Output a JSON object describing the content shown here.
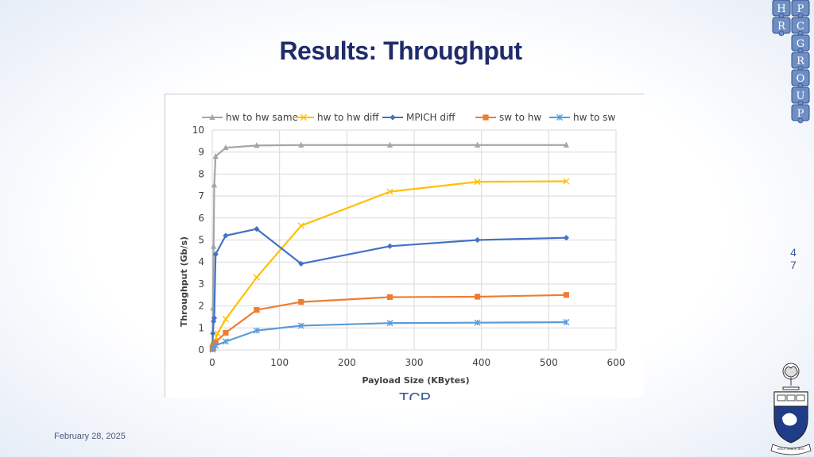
{
  "slide": {
    "title": "Results: Throughput",
    "date": "February 28, 2025",
    "page_number": [
      "4",
      "7"
    ],
    "stray_text": "TCP"
  },
  "logo": {
    "puzzle_letters": [
      "H",
      "P",
      "R",
      "C",
      "G",
      "R",
      "O",
      "U",
      "P"
    ],
    "crest_motto": "VELUT ARBOR ÆVO"
  },
  "colors": {
    "title": "#1f2b6b",
    "hw_to_hw_same": "#a5a5a5",
    "hw_to_hw_diff": "#ffc000",
    "mpich_diff": "#4472c4",
    "sw_to_hw": "#ed7d31",
    "hw_to_sw": "#5b9bd5"
  },
  "chart_data": {
    "type": "line",
    "title": "",
    "xlabel": "Payload Size (KBytes)",
    "ylabel": "Throughput (Gb/s)",
    "xlim": [
      0,
      600
    ],
    "ylim": [
      0,
      10
    ],
    "x_ticks": [
      0,
      100,
      200,
      300,
      400,
      500,
      600
    ],
    "y_ticks": [
      0,
      1,
      2,
      3,
      4,
      5,
      6,
      7,
      8,
      9,
      10
    ],
    "grid": true,
    "legend": "top",
    "series": [
      {
        "name": "hw to hw same",
        "color": "#a5a5a5",
        "marker": "triangle",
        "points": [
          [
            0.5,
            0.3
          ],
          [
            1,
            1.9
          ],
          [
            2,
            4.7
          ],
          [
            3,
            7.5
          ],
          [
            5,
            8.8
          ],
          [
            20,
            9.2
          ],
          [
            66,
            9.3
          ],
          [
            132,
            9.32
          ],
          [
            264,
            9.32
          ],
          [
            394,
            9.32
          ],
          [
            526,
            9.32
          ]
        ]
      },
      {
        "name": "hw to hw diff",
        "color": "#ffc000",
        "marker": "x",
        "points": [
          [
            0.5,
            0.1
          ],
          [
            2,
            0.2
          ],
          [
            4,
            0.4
          ],
          [
            8,
            0.75
          ],
          [
            20,
            1.4
          ],
          [
            66,
            3.3
          ],
          [
            132,
            5.65
          ],
          [
            264,
            7.2
          ],
          [
            394,
            7.65
          ],
          [
            526,
            7.67
          ]
        ]
      },
      {
        "name": "MPICH diff",
        "color": "#4472c4",
        "marker": "diamond",
        "points": [
          [
            0.5,
            0.05
          ],
          [
            1,
            0.75
          ],
          [
            2,
            1.3
          ],
          [
            3,
            1.45
          ],
          [
            5,
            4.35
          ],
          [
            20,
            5.2
          ],
          [
            66,
            5.5
          ],
          [
            132,
            3.92
          ],
          [
            264,
            4.72
          ],
          [
            394,
            5.0
          ],
          [
            526,
            5.1
          ]
        ]
      },
      {
        "name": "sw to hw",
        "color": "#ed7d31",
        "marker": "square",
        "points": [
          [
            0.5,
            0.05
          ],
          [
            1,
            0.1
          ],
          [
            2,
            0.2
          ],
          [
            5,
            0.35
          ],
          [
            20,
            0.78
          ],
          [
            66,
            1.82
          ],
          [
            132,
            2.18
          ],
          [
            264,
            2.4
          ],
          [
            394,
            2.42
          ],
          [
            526,
            2.5
          ]
        ]
      },
      {
        "name": "hw to sw",
        "color": "#5b9bd5",
        "marker": "star",
        "points": [
          [
            0.5,
            0.02
          ],
          [
            2,
            0.1
          ],
          [
            5,
            0.2
          ],
          [
            20,
            0.38
          ],
          [
            66,
            0.88
          ],
          [
            132,
            1.1
          ],
          [
            264,
            1.22
          ],
          [
            394,
            1.24
          ],
          [
            526,
            1.26
          ]
        ]
      }
    ]
  }
}
